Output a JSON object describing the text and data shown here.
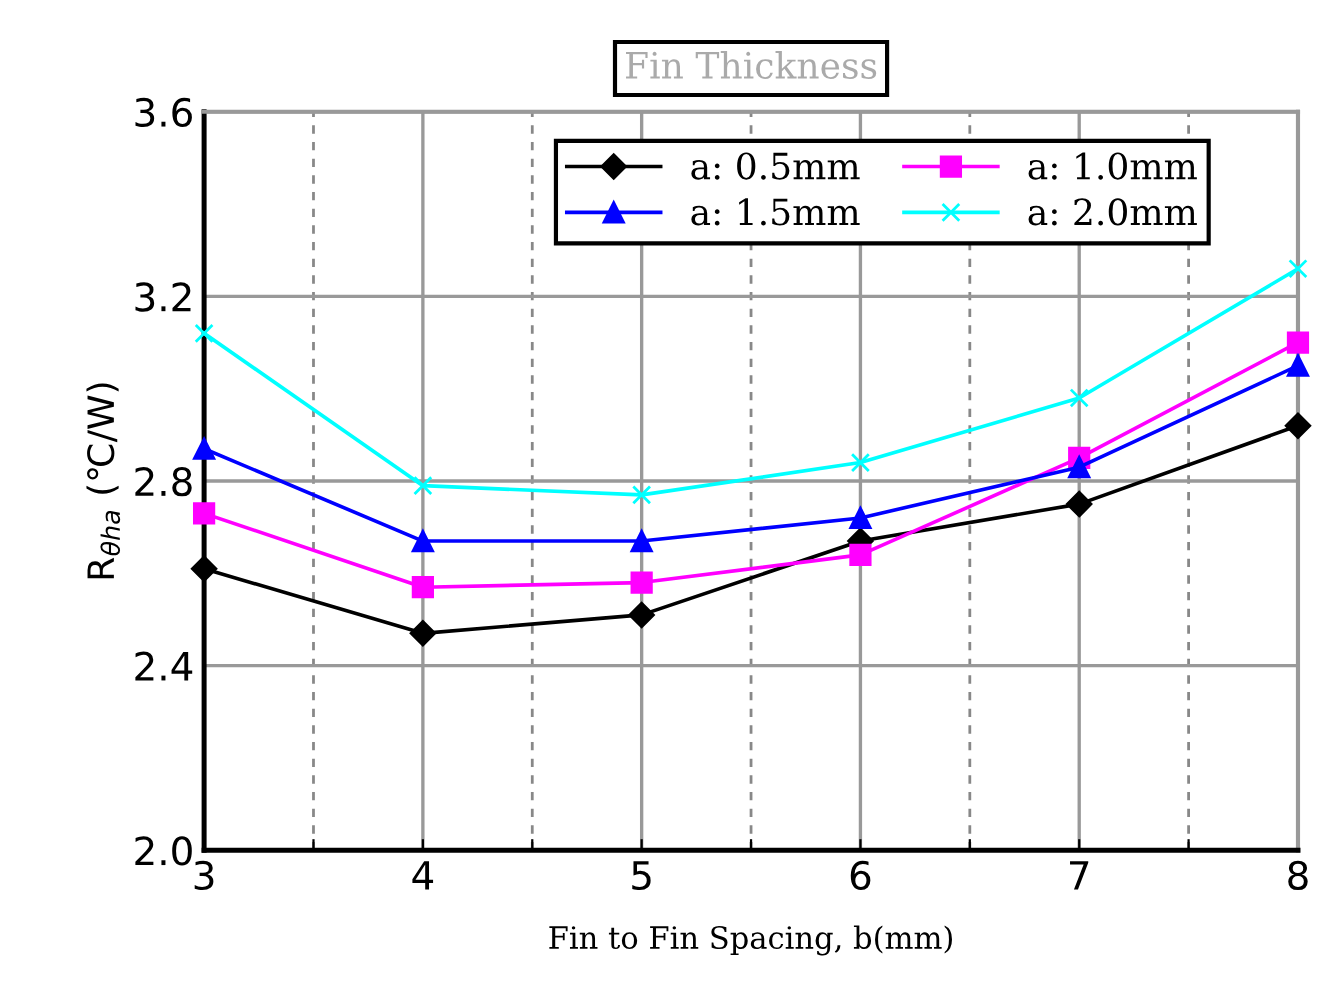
{
  "chart_data": {
    "type": "line",
    "title": "Fin Thickness",
    "xlabel": "Fin to Fin Spacing, b(mm)",
    "ylabel": "R$_{θha}$ (℃/W)",
    "x": [
      3,
      4,
      5,
      6,
      7,
      8
    ],
    "series": [
      {
        "name": "a: 0.5mm",
        "color": "#000000",
        "marker": "diamond",
        "values": [
          2.61,
          2.47,
          2.51,
          2.67,
          2.75,
          2.92
        ]
      },
      {
        "name": "a: 1.0mm",
        "color": "#ff00ff",
        "marker": "square",
        "values": [
          2.73,
          2.57,
          2.58,
          2.64,
          2.85,
          3.1
        ]
      },
      {
        "name": "a: 1.5mm",
        "color": "#0000ff",
        "marker": "triangle",
        "values": [
          2.87,
          2.67,
          2.67,
          2.72,
          2.83,
          3.05
        ]
      },
      {
        "name": "a: 2.0mm",
        "color": "#00ffff",
        "marker": "cross",
        "values": [
          3.12,
          2.79,
          2.77,
          2.84,
          2.98,
          3.26
        ]
      }
    ],
    "xlim": [
      3,
      8
    ],
    "xticks": [
      3,
      {
        "value": 3.5,
        "label": null
      },
      4,
      {
        "value": 4.5,
        "label": null
      },
      5,
      {
        "value": 5.5,
        "label": null
      },
      6,
      {
        "value": 6.5,
        "label": null
      },
      7,
      {
        "value": 7.5,
        "label": null
      },
      8
    ],
    "ylim": [
      2.0,
      3.6
    ],
    "yticks": [
      {
        "value": 2.0,
        "label": "2.0"
      },
      2.4,
      2.8,
      3.2,
      3.6
    ],
    "grid": true,
    "legend": "top",
    "line_style": "solid"
  }
}
